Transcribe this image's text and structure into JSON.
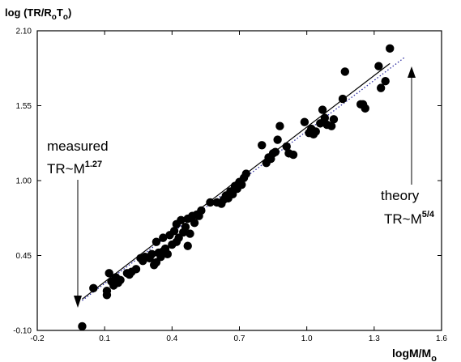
{
  "chart_data": {
    "type": "scatter",
    "title": "",
    "ylabel": {
      "main": "log (TR/R",
      "sub1": "o",
      "mid": "T",
      "sub2": "o",
      "close": ")"
    },
    "xlabel": {
      "main": "logM/M",
      "sub": "o"
    },
    "xlim": [
      -0.2,
      1.6
    ],
    "ylim": [
      -0.1,
      2.1
    ],
    "x_ticks": [
      -0.2,
      0.1,
      0.4,
      0.7,
      1.0,
      1.3,
      1.6
    ],
    "x_tick_labels": [
      "-0.2",
      "0.1",
      "0.4",
      "0.7",
      "1.0",
      "1.3",
      "1.6"
    ],
    "y_ticks": [
      -0.1,
      0.45,
      1.0,
      1.55,
      2.1
    ],
    "y_tick_labels": [
      "-0.10",
      "0.45",
      "1.00",
      "1.55",
      "2.10"
    ],
    "grid": false,
    "annotations": {
      "measured": {
        "line1": "measured",
        "base": "TR~M",
        "exp": "1.27"
      },
      "theory": {
        "line1": "theory",
        "base": "TR~M",
        "exp": "5/4"
      }
    },
    "lines": {
      "measured_fit": {
        "style": "solid",
        "color": "#000000",
        "x": [
          0.0,
          1.37
        ],
        "y": [
          0.13,
          1.86
        ]
      },
      "theory": {
        "style": "dotted",
        "color": "#2a2aa0",
        "x": [
          0.0,
          1.44
        ],
        "y": [
          0.12,
          1.91
        ]
      }
    },
    "points": [
      [
        0.0,
        -0.07
      ],
      [
        0.05,
        0.21
      ],
      [
        0.11,
        0.16
      ],
      [
        0.11,
        0.19
      ],
      [
        0.12,
        0.32
      ],
      [
        0.13,
        0.26
      ],
      [
        0.14,
        0.23
      ],
      [
        0.15,
        0.29
      ],
      [
        0.16,
        0.25
      ],
      [
        0.17,
        0.27
      ],
      [
        0.2,
        0.32
      ],
      [
        0.21,
        0.31
      ],
      [
        0.22,
        0.33
      ],
      [
        0.24,
        0.35
      ],
      [
        0.26,
        0.43
      ],
      [
        0.27,
        0.41
      ],
      [
        0.28,
        0.44
      ],
      [
        0.3,
        0.43
      ],
      [
        0.31,
        0.46
      ],
      [
        0.32,
        0.38
      ],
      [
        0.33,
        0.4
      ],
      [
        0.33,
        0.55
      ],
      [
        0.34,
        0.47
      ],
      [
        0.35,
        0.44
      ],
      [
        0.36,
        0.48
      ],
      [
        0.36,
        0.58
      ],
      [
        0.37,
        0.5
      ],
      [
        0.38,
        0.46
      ],
      [
        0.39,
        0.6
      ],
      [
        0.4,
        0.53
      ],
      [
        0.41,
        0.63
      ],
      [
        0.42,
        0.55
      ],
      [
        0.42,
        0.68
      ],
      [
        0.43,
        0.58
      ],
      [
        0.44,
        0.71
      ],
      [
        0.45,
        0.62
      ],
      [
        0.46,
        0.66
      ],
      [
        0.47,
        0.52
      ],
      [
        0.47,
        0.72
      ],
      [
        0.48,
        0.61
      ],
      [
        0.49,
        0.74
      ],
      [
        0.5,
        0.69
      ],
      [
        0.51,
        0.75
      ],
      [
        0.52,
        0.74
      ],
      [
        0.53,
        0.78
      ],
      [
        0.57,
        0.84
      ],
      [
        0.6,
        0.84
      ],
      [
        0.62,
        0.83
      ],
      [
        0.63,
        0.86
      ],
      [
        0.64,
        0.89
      ],
      [
        0.65,
        0.87
      ],
      [
        0.66,
        0.92
      ],
      [
        0.67,
        0.9
      ],
      [
        0.68,
        0.96
      ],
      [
        0.69,
        0.94
      ],
      [
        0.7,
        0.99
      ],
      [
        0.71,
        0.97
      ],
      [
        0.72,
        1.02
      ],
      [
        0.73,
        1.05
      ],
      [
        0.8,
        1.26
      ],
      [
        0.82,
        1.13
      ],
      [
        0.83,
        1.17
      ],
      [
        0.84,
        1.16
      ],
      [
        0.85,
        1.2
      ],
      [
        0.86,
        1.21
      ],
      [
        0.87,
        1.3
      ],
      [
        0.88,
        1.4
      ],
      [
        0.91,
        1.25
      ],
      [
        0.92,
        1.2
      ],
      [
        0.94,
        1.19
      ],
      [
        0.99,
        1.43
      ],
      [
        1.01,
        1.35
      ],
      [
        1.02,
        1.38
      ],
      [
        1.03,
        1.34
      ],
      [
        1.04,
        1.36
      ],
      [
        1.06,
        1.42
      ],
      [
        1.07,
        1.52
      ],
      [
        1.08,
        1.46
      ],
      [
        1.09,
        1.41
      ],
      [
        1.11,
        1.4
      ],
      [
        1.12,
        1.45
      ],
      [
        1.16,
        1.6
      ],
      [
        1.17,
        1.8
      ],
      [
        1.24,
        1.56
      ],
      [
        1.25,
        1.56
      ],
      [
        1.26,
        1.53
      ],
      [
        1.32,
        1.84
      ],
      [
        1.33,
        1.68
      ],
      [
        1.35,
        1.73
      ],
      [
        1.37,
        1.97
      ]
    ]
  }
}
